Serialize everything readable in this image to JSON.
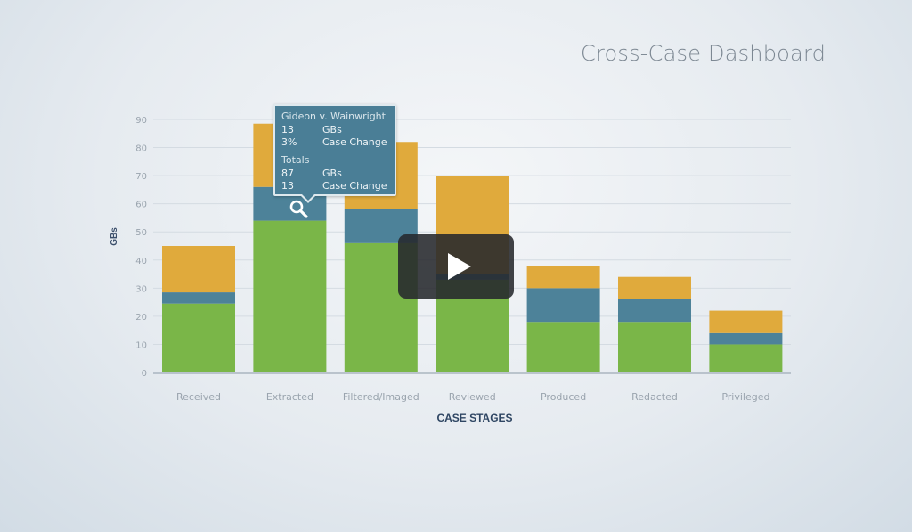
{
  "page": {
    "title": "Cross-Case Dashboard"
  },
  "chart_data": {
    "type": "bar",
    "stacked": true,
    "title": "",
    "xlabel": "CASE STAGES",
    "ylabel": "GBs",
    "ylim": [
      0,
      90
    ],
    "yticks": [
      0,
      10,
      20,
      30,
      40,
      50,
      60,
      70,
      80,
      90
    ],
    "grid": true,
    "categories": [
      "Received",
      "Extracted",
      "Filtered/Imaged",
      "Reviewed",
      "Produced",
      "Redacted",
      "Privileged"
    ],
    "series": [
      {
        "color": "#7ab648",
        "values": [
          24.5,
          54,
          46,
          33,
          18,
          18,
          10
        ]
      },
      {
        "color": "#4d8299",
        "values": [
          4,
          12,
          12,
          2,
          12,
          8,
          4
        ]
      },
      {
        "color": "#e0aa3c",
        "values": [
          16.5,
          22.5,
          24,
          35,
          8,
          8,
          8
        ]
      }
    ],
    "tooltip": {
      "case_name": "Gideon v. Wainwright",
      "rows": [
        {
          "value": "13",
          "label": "GBs"
        },
        {
          "value": "3%",
          "label": "Case Change"
        }
      ],
      "totals_label": "Totals",
      "totals_rows": [
        {
          "value": "87",
          "label": "GBs"
        },
        {
          "value": "13",
          "label": "Case Change"
        }
      ]
    }
  },
  "icons": {
    "magnify": "magnifying-glass-icon",
    "play": "play-icon"
  }
}
